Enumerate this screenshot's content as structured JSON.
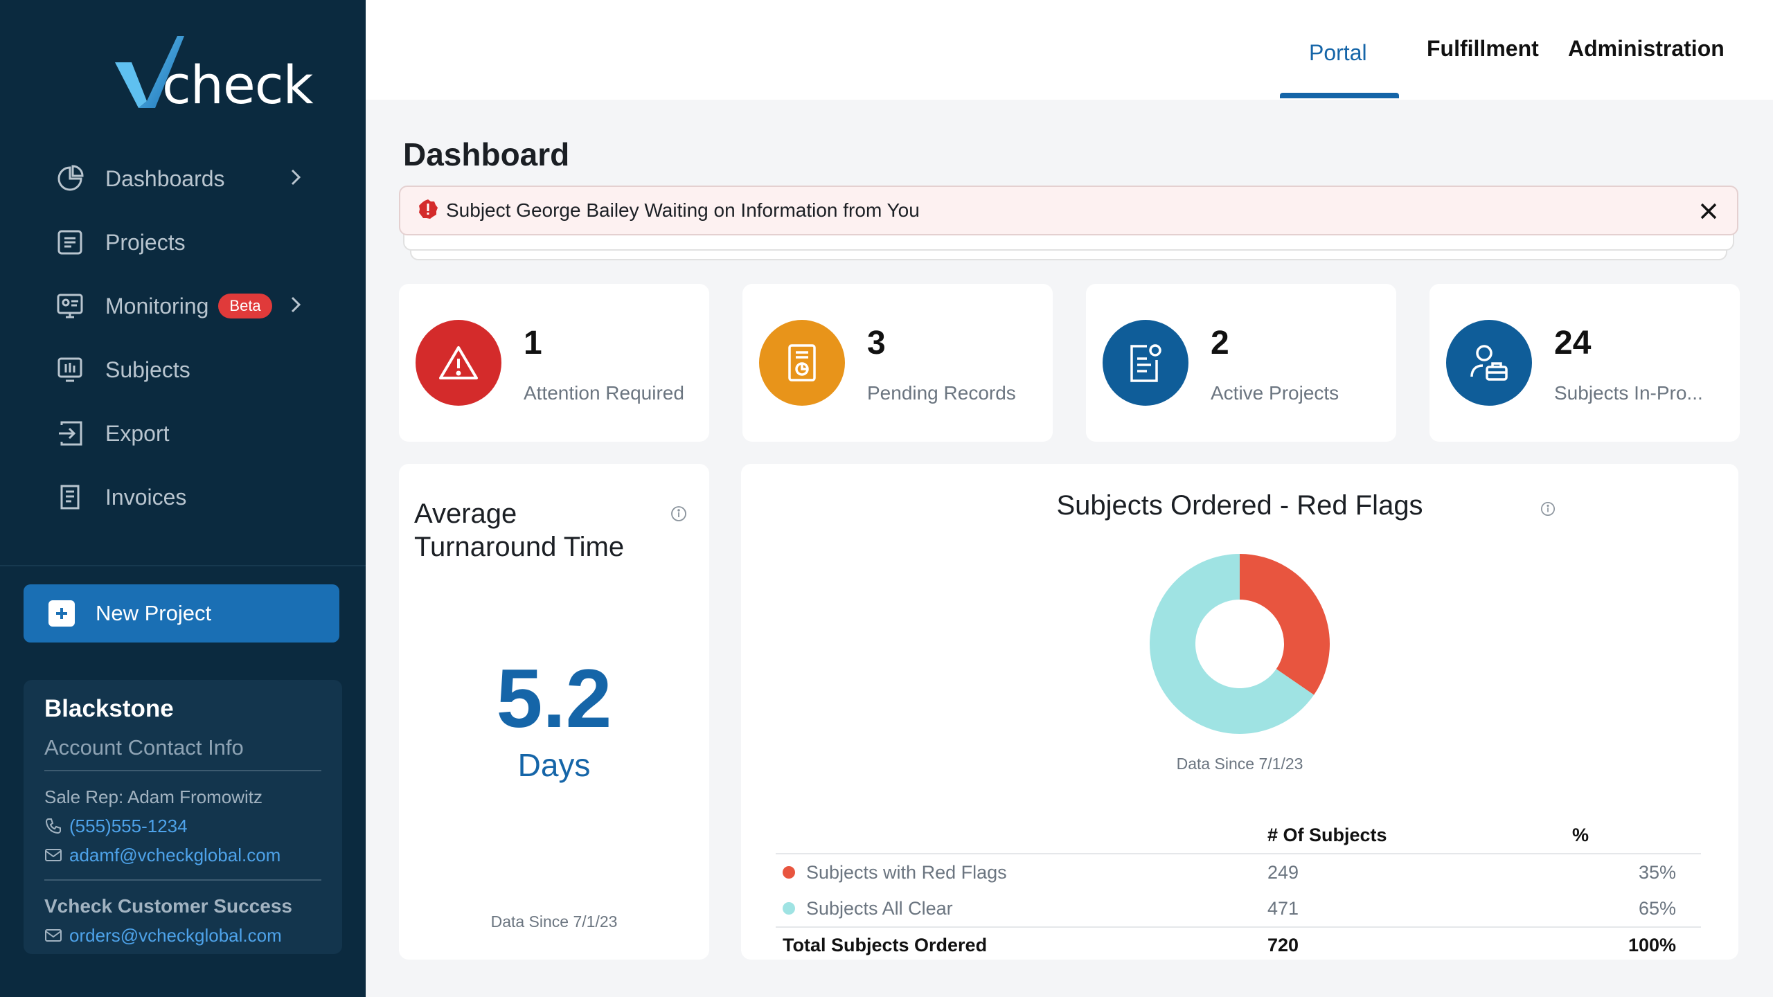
{
  "brand": {
    "name": "check"
  },
  "sidebar": {
    "items": [
      {
        "label": "Dashboards",
        "icon": "pie-chart-icon",
        "has_chevron": true
      },
      {
        "label": "Projects",
        "icon": "list-icon"
      },
      {
        "label": "Monitoring",
        "icon": "monitor-icon",
        "badge": "Beta",
        "has_chevron": true
      },
      {
        "label": "Subjects",
        "icon": "subjects-icon"
      },
      {
        "label": "Export",
        "icon": "export-icon"
      },
      {
        "label": "Invoices",
        "icon": "invoice-icon"
      }
    ],
    "new_project_label": "New Project",
    "account": {
      "name": "Blackstone",
      "subtitle": "Account Contact Info",
      "sale_rep": "Sale Rep: Adam Fromowitz",
      "phone": "(555)555-1234",
      "email": "adamf@vcheckglobal.com",
      "cs_title": "Vcheck Customer Success",
      "cs_email": "orders@vcheckglobal.com"
    }
  },
  "topnav": {
    "tabs": [
      {
        "label": "Portal",
        "active": true
      },
      {
        "label": "Fulfillment"
      },
      {
        "label": "Administration"
      }
    ]
  },
  "page": {
    "title": "Dashboard"
  },
  "alert": {
    "text": "Subject George Bailey Waiting on Information from You"
  },
  "stats": [
    {
      "value": "1",
      "label": "Attention Required",
      "color": "#d42b2b",
      "icon": "warning-icon"
    },
    {
      "value": "3",
      "label": "Pending Records",
      "color": "#e8941a",
      "icon": "record-icon"
    },
    {
      "value": "2",
      "label": "Active Projects",
      "color": "#0f5d99",
      "icon": "clipboard-icon"
    },
    {
      "value": "24",
      "label": "Subjects In-Pro...",
      "color": "#0f5d99",
      "icon": "person-briefcase-icon"
    }
  ],
  "turnaround": {
    "title": "Average Turnaround Time",
    "value": "5.2",
    "unit": "Days",
    "since": "Data Since 7/1/23"
  },
  "red_flags": {
    "title": "Subjects Ordered - Red Flags",
    "since": "Data Since 7/1/23",
    "col_subjects": "# Of Subjects",
    "col_percent": "%",
    "rows": [
      {
        "label": "Subjects with Red Flags",
        "count": "249",
        "percent": "35%",
        "color": "#e8553f"
      },
      {
        "label": "Subjects All Clear",
        "count": "471",
        "percent": "65%",
        "color": "#9fe3e3"
      }
    ],
    "total": {
      "label": "Total Subjects Ordered",
      "count": "720",
      "percent": "100%"
    }
  },
  "chart_data": {
    "type": "pie",
    "categories": [
      "Subjects with Red Flags",
      "Subjects All Clear"
    ],
    "values": [
      249,
      471
    ],
    "colors": [
      "#e8553f",
      "#9fe3e3"
    ],
    "title": "Subjects Ordered - Red Flags"
  }
}
